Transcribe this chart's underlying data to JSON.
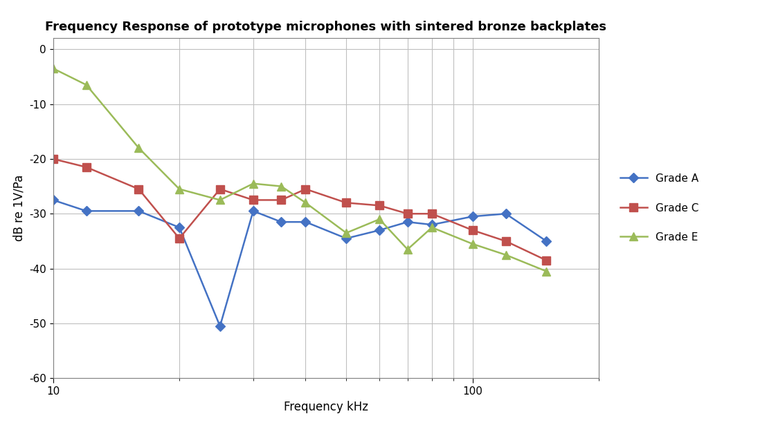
{
  "title": "Frequency Response of prototype microphones with sintered bronze backplates",
  "xlabel": "Frequency kHz",
  "ylabel": "dB re 1V/Pa",
  "ylim": [
    -60,
    2
  ],
  "yticks": [
    0,
    -10,
    -20,
    -30,
    -40,
    -50,
    -60
  ],
  "xlim_log": [
    10,
    200
  ],
  "grade_A": {
    "label": "Grade A",
    "color": "#4472C4",
    "marker": "D",
    "x": [
      10,
      12,
      16,
      20,
      25,
      30,
      35,
      40,
      50,
      60,
      70,
      80,
      100,
      120,
      150
    ],
    "y": [
      -27.5,
      -29.5,
      -29.5,
      -32.5,
      -50.5,
      -29.5,
      -31.5,
      -31.5,
      -34.5,
      -33.0,
      -31.5,
      -32.0,
      -30.5,
      -30.0,
      -35.0
    ]
  },
  "grade_C": {
    "label": "Grade C",
    "color": "#C0504D",
    "marker": "s",
    "x": [
      10,
      12,
      16,
      20,
      25,
      30,
      35,
      40,
      50,
      60,
      70,
      80,
      100,
      120,
      150
    ],
    "y": [
      -20.0,
      -21.5,
      -25.5,
      -34.5,
      -25.5,
      -27.5,
      -27.5,
      -25.5,
      -28.0,
      -28.5,
      -30.0,
      -30.0,
      -33.0,
      -35.0,
      -38.5
    ]
  },
  "grade_E": {
    "label": "Grade E",
    "color": "#9BBB59",
    "marker": "^",
    "x": [
      10,
      12,
      16,
      20,
      25,
      30,
      35,
      40,
      50,
      60,
      70,
      80,
      100,
      120,
      150
    ],
    "y": [
      -3.5,
      -6.5,
      -18.0,
      -25.5,
      -27.5,
      -24.5,
      -25.0,
      -28.0,
      -33.5,
      -31.0,
      -36.5,
      -32.5,
      -35.5,
      -37.5,
      -40.5
    ]
  },
  "background_color": "#FFFFFF",
  "grid_color": "#BFBFBF",
  "minor_xticks": [
    20,
    30,
    40,
    50,
    60,
    70,
    80,
    90,
    200
  ],
  "major_xticks": [
    10,
    100
  ],
  "major_xtick_labels": [
    "10",
    "100"
  ]
}
